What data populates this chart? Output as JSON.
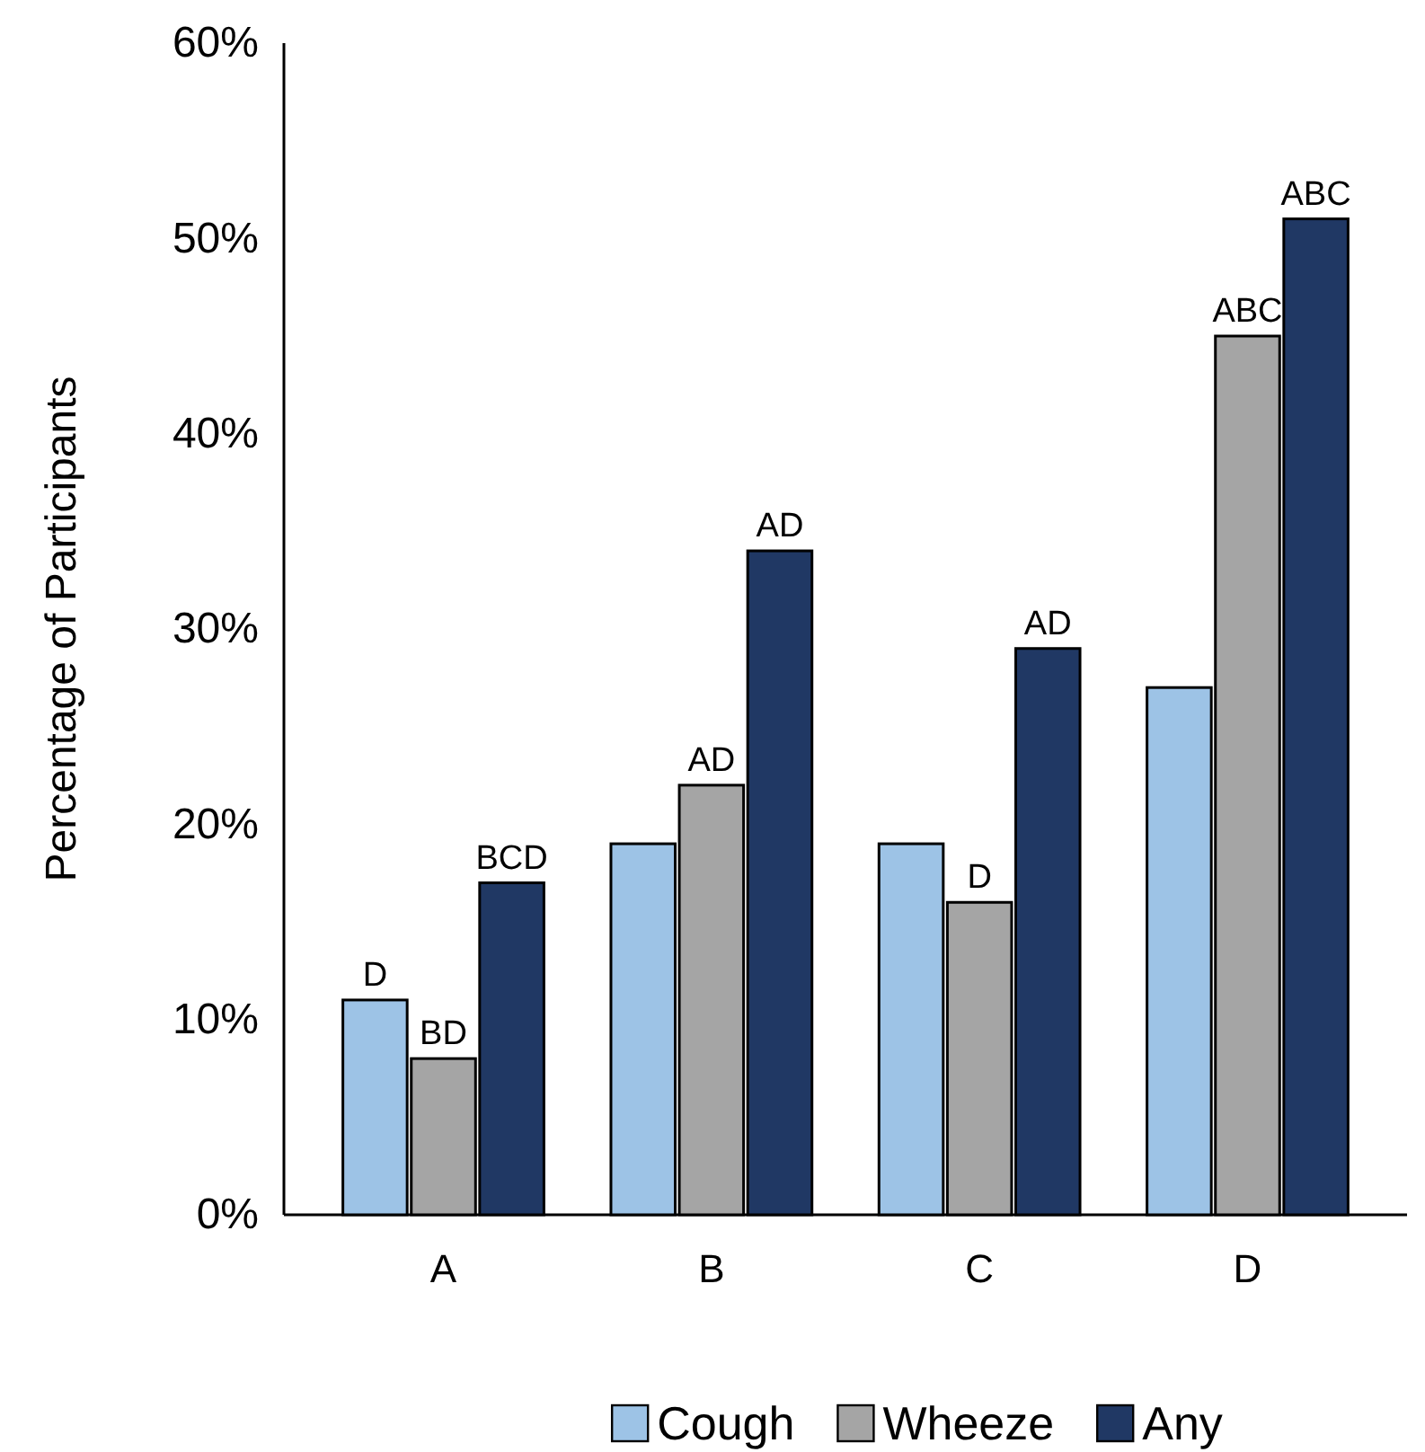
{
  "chart_data": {
    "type": "bar",
    "ylabel": "Percentage of Participants",
    "categories": [
      "A",
      "B",
      "C",
      "D"
    ],
    "series": [
      {
        "name": "Cough",
        "color": "#9dc3e6",
        "values": [
          11,
          19,
          19,
          27
        ],
        "value_labels": [
          "D",
          null,
          null,
          null
        ]
      },
      {
        "name": "Wheeze",
        "color": "#a5a5a5",
        "values": [
          8,
          22,
          16,
          45
        ],
        "value_labels": [
          "BD",
          "AD",
          "D",
          "ABC"
        ]
      },
      {
        "name": "Any",
        "color": "#203864",
        "values": [
          17,
          34,
          29,
          51
        ],
        "value_labels": [
          "BCD",
          "AD",
          "AD",
          "ABC"
        ]
      }
    ],
    "ylim": [
      0,
      60
    ],
    "yticks": [
      {
        "value": 0,
        "label": "0%"
      },
      {
        "value": 10,
        "label": "10%"
      },
      {
        "value": 20,
        "label": "20%"
      },
      {
        "value": 30,
        "label": "30%"
      },
      {
        "value": 40,
        "label": "40%"
      },
      {
        "value": 50,
        "label": "50%"
      },
      {
        "value": 60,
        "label": "60%"
      }
    ],
    "grid": false,
    "legend": "bottom"
  }
}
